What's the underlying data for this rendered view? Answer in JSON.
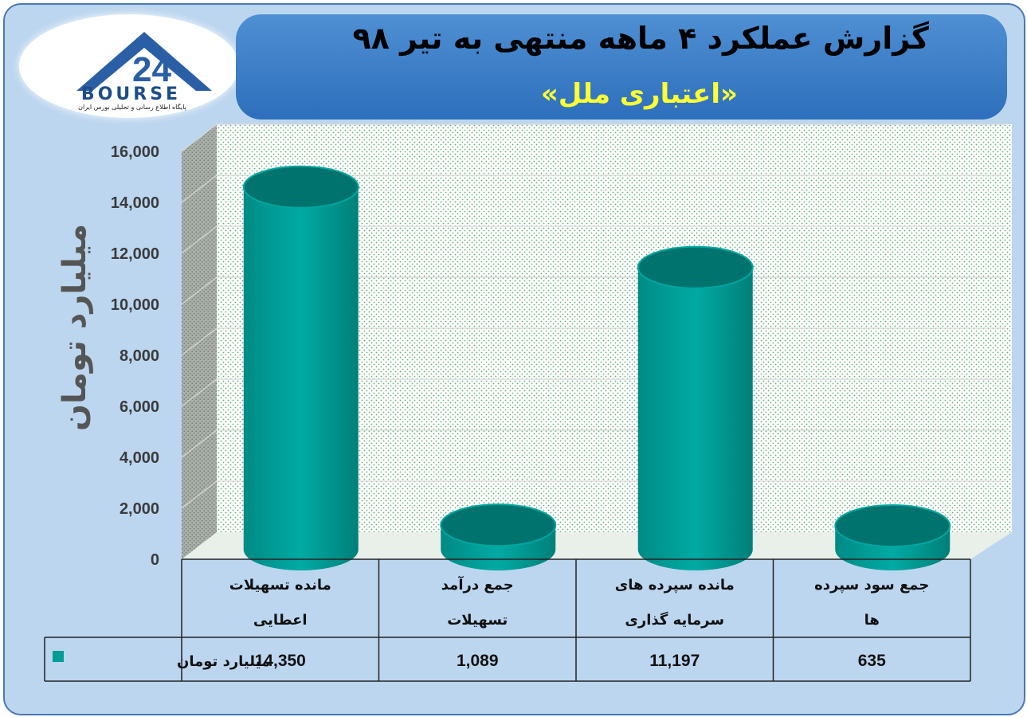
{
  "logo": {
    "text": "BOURSE",
    "sub": "پایگاه اطلاع رسانی و تحلیلی بورس ایران"
  },
  "header": {
    "title": "گزارش عملکرد ۴ ماهه منتهی به تیر ۹۸",
    "subtitle": "«اعتباری ملل»"
  },
  "colors": {
    "bar": "#009c96",
    "bar_dark": "#00736e",
    "background": "#bcd6ef",
    "header": "#3a7fc8",
    "subtitle": "#ffff33"
  },
  "chart_data": {
    "type": "bar",
    "title": "گزارش عملکرد ۴ ماهه منتهی به تیر ۹۸",
    "ylabel": "میلیارد تومان",
    "ylim": [
      0,
      16000
    ],
    "yticks": [
      "0",
      "2,000",
      "4,000",
      "6,000",
      "8,000",
      "10,000",
      "12,000",
      "14,000",
      "16,000"
    ],
    "categories": [
      [
        "مانده تسهیلات",
        "اعطایی"
      ],
      [
        "جمع درآمد",
        "تسهیلات"
      ],
      [
        "مانده سپرده های",
        "سرمایه گذاری"
      ],
      [
        "جمع سود سپرده",
        "ها"
      ]
    ],
    "series": [
      {
        "name": "میلیارد تومان",
        "values": [
          14350,
          1089,
          11197,
          635
        ],
        "labels": [
          "14,350",
          "1,089",
          "11,197",
          "635"
        ]
      }
    ],
    "grid": true,
    "legend": "data-table"
  }
}
